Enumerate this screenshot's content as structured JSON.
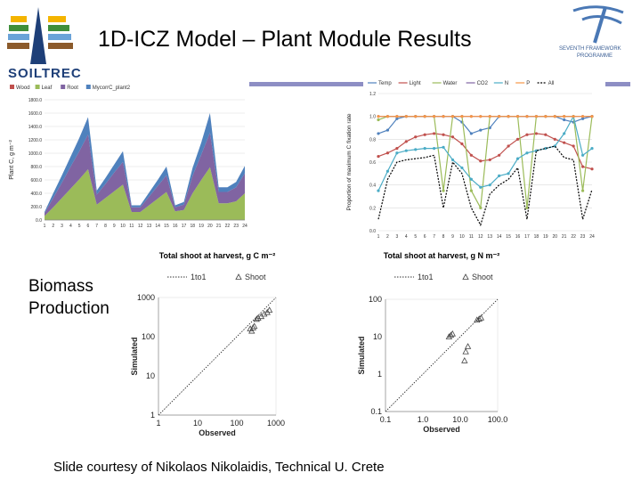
{
  "slide": {
    "title": "1D-ICZ Model – Plant Module Results",
    "brand": "SOILTREC",
    "fp_line1": "SEVENTH FRAMEWORK",
    "fp_line2": "PROGRAMME",
    "section_label_1": "Biomass",
    "section_label_2": "Production",
    "credit": "Slide courtesy of Nikolaos Nikolaidis, Technical U. Crete",
    "colors": {
      "accent_bar": "#8d8ec4",
      "brand": "#1e3f78"
    }
  },
  "chart_data": [
    {
      "type": "area",
      "ylabel": "Plant C, g m⁻²",
      "ylim": [
        0,
        1800
      ],
      "yticks": [
        "0.0",
        "200.0",
        "400.0",
        "600.0",
        "800.0",
        "1000.0",
        "1200.0",
        "1400.0",
        "1600.0",
        "1800.0"
      ],
      "x": [
        "1",
        "2",
        "3",
        "4",
        "5",
        "6",
        "7",
        "8",
        "9",
        "10",
        "11",
        "12",
        "13",
        "14",
        "15",
        "16",
        "17",
        "18",
        "19",
        "20",
        "21",
        "22",
        "23",
        "24"
      ],
      "legend": [
        "Wood",
        "Leaf",
        "Root",
        "MycorrC_plant2"
      ],
      "legend_position": "top",
      "grid": true,
      "series": [
        {
          "name": "Wood",
          "color": "#c0504d",
          "values": [
            0,
            0,
            0,
            0,
            0,
            0,
            0,
            0,
            0,
            0,
            0,
            0,
            0,
            0,
            0,
            0,
            0,
            0,
            0,
            0,
            0,
            0,
            0,
            0
          ]
        },
        {
          "name": "Leaf",
          "color": "#9bbb59",
          "values": [
            60,
            190,
            330,
            470,
            610,
            760,
            230,
            330,
            430,
            530,
            120,
            120,
            220,
            320,
            420,
            130,
            150,
            400,
            600,
            790,
            250,
            250,
            280,
            400
          ]
        },
        {
          "name": "Root",
          "color": "#8064a2",
          "values": [
            40,
            140,
            230,
            330,
            420,
            520,
            150,
            210,
            280,
            340,
            70,
            70,
            130,
            190,
            250,
            60,
            80,
            260,
            380,
            520,
            170,
            170,
            210,
            300
          ]
        },
        {
          "name": "MycorrC_plant2",
          "color": "#4f81bd",
          "values": [
            20,
            70,
            110,
            150,
            200,
            260,
            60,
            90,
            120,
            160,
            30,
            30,
            60,
            90,
            130,
            30,
            40,
            120,
            180,
            290,
            70,
            70,
            80,
            110
          ]
        }
      ]
    },
    {
      "type": "line",
      "ylabel": "Proportion of maximum C fixation rate",
      "ylim": [
        0,
        1.2
      ],
      "yticks": [
        "0.0",
        "0.2",
        "0.4",
        "0.6",
        "0.8",
        "1.0",
        "1.2"
      ],
      "x": [
        "1",
        "2",
        "3",
        "4",
        "5",
        "6",
        "7",
        "8",
        "9",
        "10",
        "11",
        "12",
        "13",
        "14",
        "15",
        "16",
        "17",
        "18",
        "19",
        "20",
        "21",
        "22",
        "23",
        "24"
      ],
      "legend": [
        "Temp",
        "Light",
        "Water",
        "CO2",
        "N",
        "P",
        "All"
      ],
      "legend_position": "top",
      "grid": true,
      "series": [
        {
          "name": "Temp",
          "color": "#4f81bd",
          "values": [
            0.85,
            0.88,
            0.98,
            1.0,
            1.0,
            1.0,
            1.0,
            1.0,
            1.0,
            0.95,
            0.85,
            0.88,
            0.9,
            1.0,
            1.0,
            1.0,
            1.0,
            1.0,
            1.0,
            1.0,
            0.97,
            0.95,
            0.98,
            1.0
          ]
        },
        {
          "name": "Light",
          "color": "#c0504d",
          "values": [
            0.65,
            0.68,
            0.72,
            0.78,
            0.82,
            0.84,
            0.85,
            0.84,
            0.82,
            0.76,
            0.66,
            0.61,
            0.62,
            0.66,
            0.74,
            0.8,
            0.84,
            0.85,
            0.84,
            0.8,
            0.77,
            0.74,
            0.56,
            0.54
          ]
        },
        {
          "name": "Water",
          "color": "#9bbb59",
          "values": [
            0.97,
            1.0,
            1.0,
            1.0,
            1.0,
            1.0,
            1.0,
            0.35,
            1.0,
            1.0,
            0.35,
            0.2,
            1.0,
            1.0,
            1.0,
            1.0,
            0.2,
            1.0,
            1.0,
            1.0,
            1.0,
            1.0,
            0.35,
            1.0
          ]
        },
        {
          "name": "CO2",
          "color": "#8064a2",
          "values": [
            1.0,
            1.0,
            1.0,
            1.0,
            1.0,
            1.0,
            1.0,
            1.0,
            1.0,
            1.0,
            1.0,
            1.0,
            1.0,
            1.0,
            1.0,
            1.0,
            1.0,
            1.0,
            1.0,
            1.0,
            1.0,
            1.0,
            1.0,
            1.0
          ]
        },
        {
          "name": "N",
          "color": "#4bacc6",
          "values": [
            0.35,
            0.52,
            0.68,
            0.7,
            0.71,
            0.72,
            0.72,
            0.73,
            0.62,
            0.55,
            0.45,
            0.38,
            0.4,
            0.48,
            0.5,
            0.63,
            0.68,
            0.7,
            0.72,
            0.74,
            0.85,
            1.0,
            0.66,
            0.72
          ]
        },
        {
          "name": "P",
          "color": "#f79646",
          "values": [
            1.0,
            1.0,
            1.0,
            1.0,
            1.0,
            1.0,
            1.0,
            1.0,
            1.0,
            1.0,
            1.0,
            1.0,
            1.0,
            1.0,
            1.0,
            1.0,
            1.0,
            1.0,
            1.0,
            1.0,
            1.0,
            1.0,
            1.0,
            1.0
          ]
        },
        {
          "name": "All",
          "color": "#000000",
          "values": [
            0.1,
            0.45,
            0.6,
            0.62,
            0.63,
            0.64,
            0.66,
            0.2,
            0.6,
            0.5,
            0.2,
            0.05,
            0.32,
            0.4,
            0.45,
            0.55,
            0.1,
            0.7,
            0.72,
            0.74,
            0.64,
            0.62,
            0.1,
            0.36
          ]
        }
      ]
    },
    {
      "type": "scatter",
      "title": "Total shoot at harvest, g C m⁻²",
      "xlabel": "Observed",
      "ylabel": "Simulated",
      "scale": "log",
      "xlim": [
        1,
        1000
      ],
      "ylim": [
        1,
        1000
      ],
      "xticks": [
        "1",
        "10",
        "100",
        "1000"
      ],
      "yticks": [
        "1",
        "10",
        "100",
        "1000"
      ],
      "legend": [
        "1to1",
        "Shoot"
      ],
      "legend_position": "top",
      "series": [
        {
          "name": "1to1",
          "style": "dotted",
          "points": [
            [
              1,
              1
            ],
            [
              1000,
              1000
            ]
          ]
        },
        {
          "name": "Shoot",
          "marker": "triangle",
          "points": [
            [
              320,
              280
            ],
            [
              350,
              300
            ],
            [
              420,
              330
            ],
            [
              500,
              380
            ],
            [
              600,
              420
            ],
            [
              680,
              480
            ],
            [
              240,
              140
            ],
            [
              220,
              160
            ],
            [
              260,
              170
            ],
            [
              280,
              185
            ]
          ]
        }
      ]
    },
    {
      "type": "scatter",
      "title": "Total shoot at harvest, g N m⁻²",
      "xlabel": "Observed",
      "ylabel": "Simulated",
      "scale": "log",
      "xlim": [
        0.1,
        100
      ],
      "ylim": [
        0.1,
        100
      ],
      "xticks": [
        "0.1",
        "1.0",
        "10.0",
        "100.0"
      ],
      "yticks": [
        "0.1",
        "1",
        "10",
        "100"
      ],
      "legend": [
        "1to1",
        "Shoot"
      ],
      "legend_position": "top",
      "series": [
        {
          "name": "1to1",
          "style": "dotted",
          "points": [
            [
              0.1,
              0.1
            ],
            [
              100,
              100
            ]
          ]
        },
        {
          "name": "Shoot",
          "marker": "triangle",
          "points": [
            [
              5,
              10
            ],
            [
              5.6,
              11
            ],
            [
              6.2,
              12
            ],
            [
              14,
              4
            ],
            [
              16,
              5.5
            ],
            [
              13,
              2.3
            ],
            [
              28,
              28
            ],
            [
              32,
              30
            ],
            [
              36,
              32
            ]
          ]
        }
      ]
    }
  ]
}
